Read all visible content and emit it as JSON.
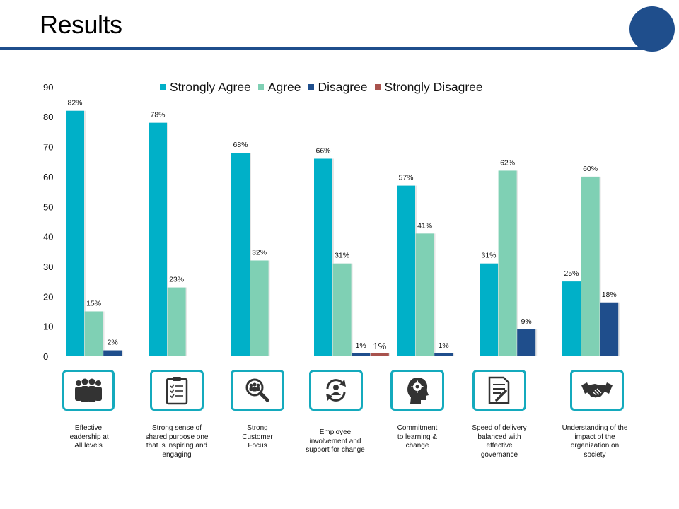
{
  "slide": {
    "title": "Results",
    "accent_color": "#1f4e8c",
    "icon_border_color": "#14aabd"
  },
  "chart_data": {
    "type": "bar",
    "title": "",
    "xlabel": "",
    "ylabel": "",
    "ylim": [
      0,
      90
    ],
    "yticks": [
      0,
      10,
      20,
      30,
      40,
      50,
      60,
      70,
      80,
      90
    ],
    "legend_position": "top",
    "categories": [
      "Effective leadership at All levels",
      "Strong sense of shared purpose one that is inspiring and engaging",
      "Strong Customer Focus",
      "Employee involvement and support for change",
      "Commitment to learning & change",
      "Speed of delivery balanced with effective governance",
      "Understanding of the impact of the organization on society"
    ],
    "series": [
      {
        "name": "Strongly Agree",
        "color": "#00b0c8",
        "values": [
          82,
          78,
          68,
          66,
          57,
          31,
          25
        ],
        "labels": [
          "82%",
          "78%",
          "68%",
          "66%",
          "57%",
          "31%",
          "25%"
        ]
      },
      {
        "name": "Agree",
        "color": "#7fd0b4",
        "values": [
          15,
          23,
          32,
          31,
          41,
          62,
          60
        ],
        "labels": [
          "15%",
          "23%",
          "32%",
          "31%",
          "41%",
          "62%",
          "60%"
        ]
      },
      {
        "name": "Disagree",
        "color": "#1f4e8c",
        "values": [
          2,
          null,
          null,
          1,
          1,
          9,
          18
        ],
        "labels": [
          "2%",
          null,
          null,
          "1%",
          "1%",
          "9%",
          "18%"
        ]
      },
      {
        "name": "Strongly Disagree",
        "color": "#a8524d",
        "values": [
          null,
          null,
          null,
          1,
          null,
          null,
          null
        ],
        "labels": [
          null,
          null,
          null,
          "1%",
          null,
          null,
          null
        ]
      }
    ]
  },
  "tiles": [
    {
      "icon": "team-icon",
      "caption": [
        "Effective",
        "leadership at",
        "All levels"
      ]
    },
    {
      "icon": "clipboard-checklist-icon",
      "caption": [
        "Strong sense of",
        "shared purpose one",
        "that is inspiring and",
        "engaging"
      ]
    },
    {
      "icon": "people-search-icon",
      "caption": [
        "Strong",
        "Customer",
        "Focus"
      ]
    },
    {
      "icon": "person-cycle-icon",
      "caption": [
        "Employee",
        "involvement and",
        "support for change"
      ]
    },
    {
      "icon": "head-gear-icon",
      "caption": [
        "Commitment",
        "to learning &",
        "change"
      ]
    },
    {
      "icon": "document-pen-icon",
      "caption": [
        "Speed of delivery",
        "balanced with",
        "effective",
        "governance"
      ]
    },
    {
      "icon": "handshake-icon",
      "caption": [
        "Understanding of the",
        "impact of the",
        "organization on",
        "society"
      ]
    }
  ]
}
